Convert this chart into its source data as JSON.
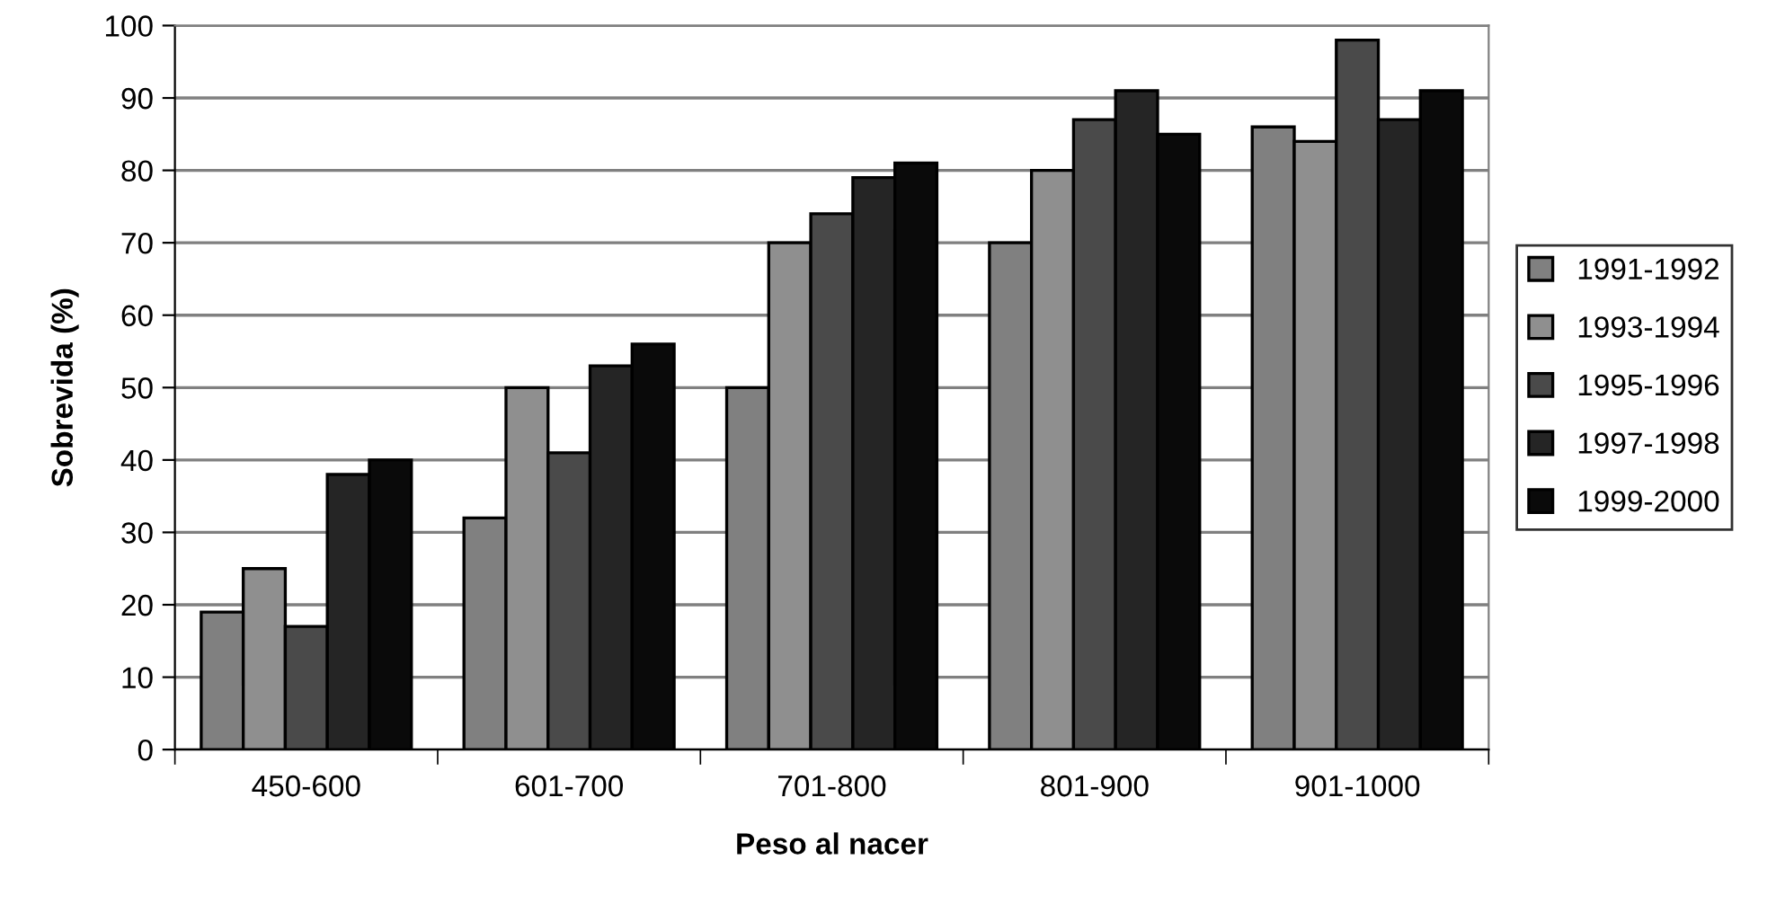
{
  "chart_data": {
    "type": "bar",
    "xlabel": "Peso al nacer",
    "ylabel": "Sobrevida (%)",
    "categories": [
      "450-600",
      "601-700",
      "701-800",
      "801-900",
      "901-1000"
    ],
    "series": [
      {
        "name": "1991-1992",
        "color": "#808080",
        "values": [
          19,
          32,
          50,
          70,
          86
        ]
      },
      {
        "name": "1993-1994",
        "color": "#8f8f8f",
        "values": [
          25,
          50,
          70,
          80,
          84
        ]
      },
      {
        "name": "1995-1996",
        "color": "#4a4a4a",
        "values": [
          17,
          41,
          74,
          87,
          98
        ]
      },
      {
        "name": "1997-1998",
        "color": "#252525",
        "values": [
          38,
          53,
          79,
          91,
          87
        ]
      },
      {
        "name": "1999-2000",
        "color": "#0a0a0a",
        "values": [
          40,
          56,
          81,
          85,
          91
        ]
      }
    ],
    "ylim": [
      0,
      100
    ],
    "yticks": [
      0,
      10,
      20,
      30,
      40,
      50,
      60,
      70,
      80,
      90,
      100
    ],
    "grid": "y",
    "legend": "right"
  }
}
